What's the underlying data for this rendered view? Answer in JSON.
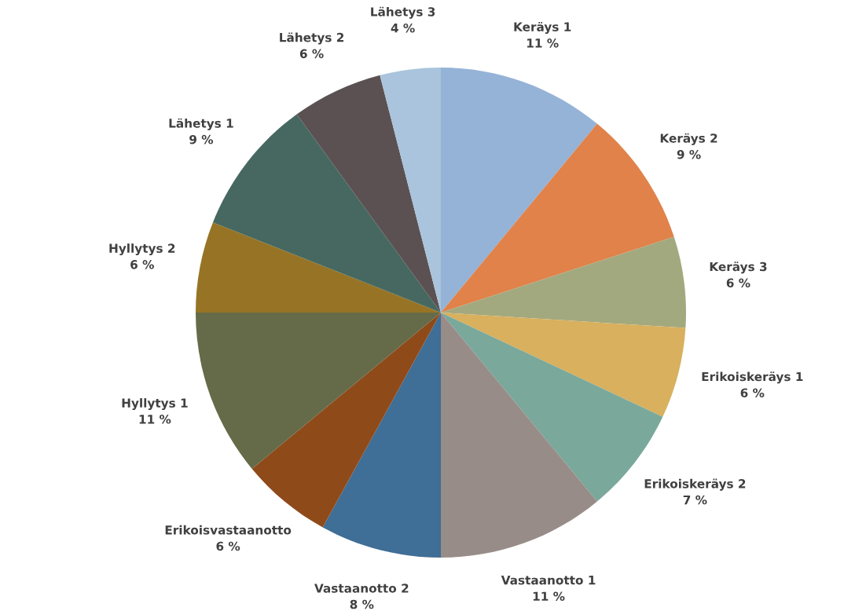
{
  "chart_data": {
    "type": "pie",
    "categories": [
      "Keräys 1",
      "Keräys 2",
      "Keräys 3",
      "Erikoiskeräys 1",
      "Erikoiskeräys 2",
      "Vastaanotto 1",
      "Vastaanotto 2",
      "Erikoisvastaanotto",
      "Hyllytys 1",
      "Hyllytys 2",
      "Lähetys 1",
      "Lähetys 2",
      "Lähetys 3"
    ],
    "values": [
      11,
      9,
      6,
      6,
      7,
      11,
      8,
      6,
      11,
      6,
      9,
      6,
      4
    ],
    "value_labels": [
      "11 %",
      "9 %",
      "6 %",
      "6 %",
      "7 %",
      "11 %",
      "8 %",
      "6 %",
      "11 %",
      "6 %",
      "9 %",
      "6 %",
      "4 %"
    ],
    "colors": [
      "#95b3d7",
      "#e0824a",
      "#a3a97e",
      "#d8b05e",
      "#7aa89a",
      "#988c89",
      "#3f6e96",
      "#8f4a1a",
      "#656b48",
      "#977425",
      "#466860",
      "#5b5152",
      "#a9c4dc"
    ],
    "legend": false
  }
}
